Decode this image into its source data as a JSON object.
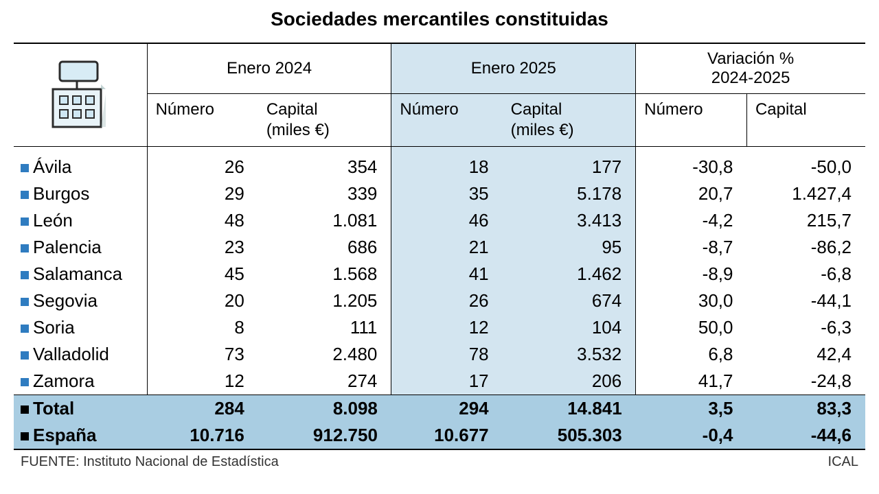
{
  "title": "Sociedades mercantiles constituidas",
  "columns": {
    "group1": "Enero 2024",
    "group2": "Enero 2025",
    "group3_line1": "Variación %",
    "group3_line2": "2024-2025",
    "sub_num": "Número",
    "sub_cap_line1": "Capital",
    "sub_cap_line2": "(miles €)",
    "sub_cap": "Capital"
  },
  "styling": {
    "background_color": "#ffffff",
    "title_fontsize": 28,
    "header_fontsize": 24,
    "cell_fontsize": 26,
    "row_bullet_color": "#2f7cc0",
    "total_bullet_color": "#000000",
    "col_highlight_color": "#d3e5f0",
    "total_row_color": "#a9cde2",
    "rule_color": "#000000",
    "icon_outline": "#2b2b2b",
    "icon_fill": "#cfe7f3"
  },
  "rows": [
    {
      "label": "Ávila",
      "n24": "26",
      "c24": "354",
      "n25": "18",
      "c25": "177",
      "nv": "-30,8",
      "cv": "-50,0"
    },
    {
      "label": "Burgos",
      "n24": "29",
      "c24": "339",
      "n25": "35",
      "c25": "5.178",
      "nv": "20,7",
      "cv": "1.427,4"
    },
    {
      "label": "León",
      "n24": "48",
      "c24": "1.081",
      "n25": "46",
      "c25": "3.413",
      "nv": "-4,2",
      "cv": "215,7"
    },
    {
      "label": "Palencia",
      "n24": "23",
      "c24": "686",
      "n25": "21",
      "c25": "95",
      "nv": "-8,7",
      "cv": "-86,2"
    },
    {
      "label": "Salamanca",
      "n24": "45",
      "c24": "1.568",
      "n25": "41",
      "c25": "1.462",
      "nv": "-8,9",
      "cv": "-6,8"
    },
    {
      "label": "Segovia",
      "n24": "20",
      "c24": "1.205",
      "n25": "26",
      "c25": "674",
      "nv": "30,0",
      "cv": "-44,1"
    },
    {
      "label": "Soria",
      "n24": "8",
      "c24": "111",
      "n25": "12",
      "c25": "104",
      "nv": "50,0",
      "cv": "-6,3"
    },
    {
      "label": "Valladolid",
      "n24": "73",
      "c24": "2.480",
      "n25": "78",
      "c25": "3.532",
      "nv": "6,8",
      "cv": "42,4"
    },
    {
      "label": "Zamora",
      "n24": "12",
      "c24": "274",
      "n25": "17",
      "c25": "206",
      "nv": "41,7",
      "cv": "-24,8"
    }
  ],
  "totals": [
    {
      "label": "Total",
      "n24": "284",
      "c24": "8.098",
      "n25": "294",
      "c25": "14.841",
      "nv": "3,5",
      "cv": "83,3"
    },
    {
      "label": "España",
      "n24": "10.716",
      "c24": "912.750",
      "n25": "10.677",
      "c25": "505.303",
      "nv": "-0,4",
      "cv": "-44,6"
    }
  ],
  "footer": {
    "source_label": "FUENTE: Instituto Nacional de Estadística",
    "credit": "ICAL"
  }
}
